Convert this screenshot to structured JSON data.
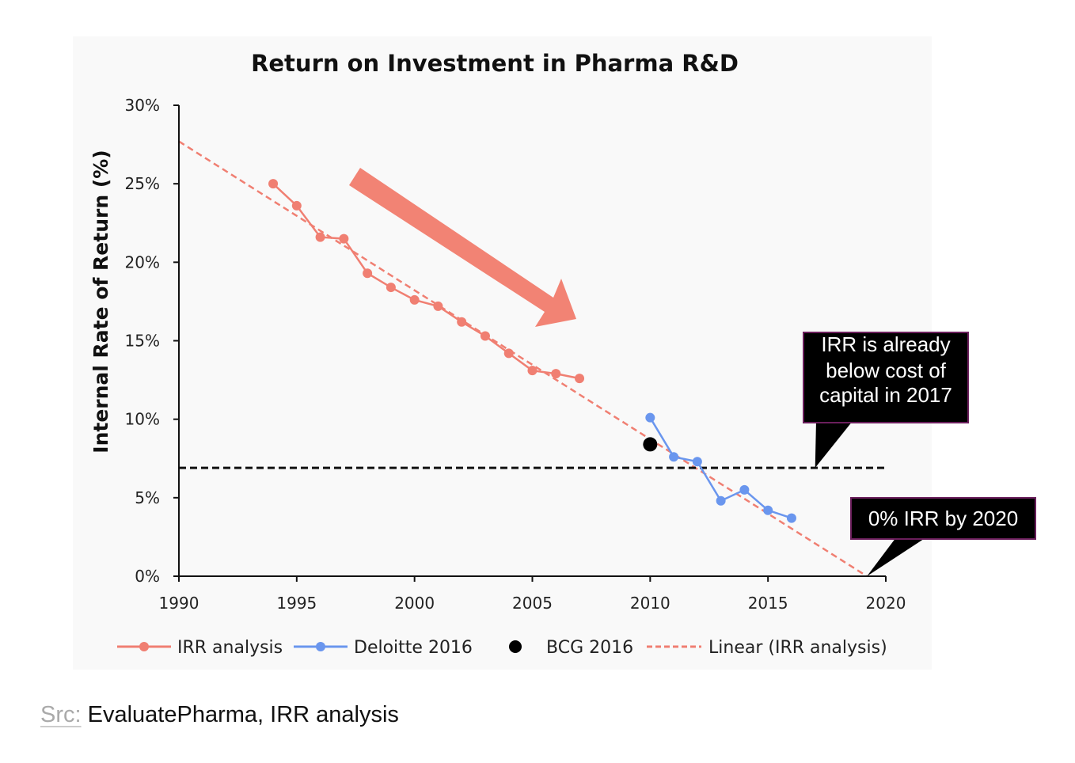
{
  "colors": {
    "irr": "#f07f72",
    "deloitte": "#6a96ee",
    "bcg": "#000000",
    "linear": "#f07f72",
    "arrow": "#f28374",
    "cost_line": "#111111",
    "callout_bg": "#000000",
    "callout_border": "#6b1f5c"
  },
  "chart_data": {
    "type": "line",
    "title": "Return on Investment in Pharma R&D",
    "xlabel": "",
    "ylabel": "Internal Rate of Return (%)",
    "xlim": [
      1990,
      2020
    ],
    "ylim": [
      0,
      30
    ],
    "x_ticks": [
      "1990",
      "1995",
      "2000",
      "2005",
      "2010",
      "2015",
      "2020"
    ],
    "y_ticks": [
      "0%",
      "5%",
      "10%",
      "15%",
      "20%",
      "25%",
      "30%"
    ],
    "series": [
      {
        "name": "IRR analysis",
        "x": [
          1994,
          1995,
          1996,
          1997,
          1998,
          1999,
          2000,
          2001,
          2002,
          2003,
          2004,
          2005,
          2006,
          2007
        ],
        "values": [
          25.0,
          23.6,
          21.6,
          21.5,
          19.3,
          18.4,
          17.6,
          17.2,
          16.2,
          15.3,
          14.2,
          13.1,
          12.9,
          12.6
        ]
      },
      {
        "name": "Deloitte 2016",
        "x": [
          2010,
          2011,
          2012,
          2013,
          2014,
          2015,
          2016
        ],
        "values": [
          10.1,
          7.6,
          7.3,
          4.8,
          5.5,
          4.2,
          3.7
        ]
      },
      {
        "name": "BCG 2016",
        "x": [
          2010
        ],
        "values": [
          8.4
        ]
      }
    ],
    "trendline": {
      "name": "Linear (IRR analysis)",
      "x": [
        1990,
        2019.2
      ],
      "values": [
        27.7,
        0.0
      ]
    },
    "reference_line": {
      "label": "cost of capital",
      "value": 6.9,
      "x_range": [
        1990,
        2020
      ]
    },
    "annotations": [
      {
        "lines": [
          "IRR is already",
          "below cost of",
          "capital in 2017"
        ],
        "points_to": [
          2017,
          6.9
        ]
      },
      {
        "lines": [
          "0% IRR by 2020"
        ],
        "points_to": [
          2019.2,
          0.0
        ]
      }
    ],
    "legend": [
      {
        "label": "IRR analysis",
        "style": "line-marker"
      },
      {
        "label": "Deloitte 2016",
        "style": "line-marker"
      },
      {
        "label": "BCG 2016",
        "style": "marker"
      },
      {
        "label": "Linear (IRR analysis)",
        "style": "dashed"
      }
    ],
    "legend_position": "bottom",
    "grid": false
  },
  "source": {
    "label": "Src:",
    "text": " EvaluatePharma, IRR analysis"
  }
}
